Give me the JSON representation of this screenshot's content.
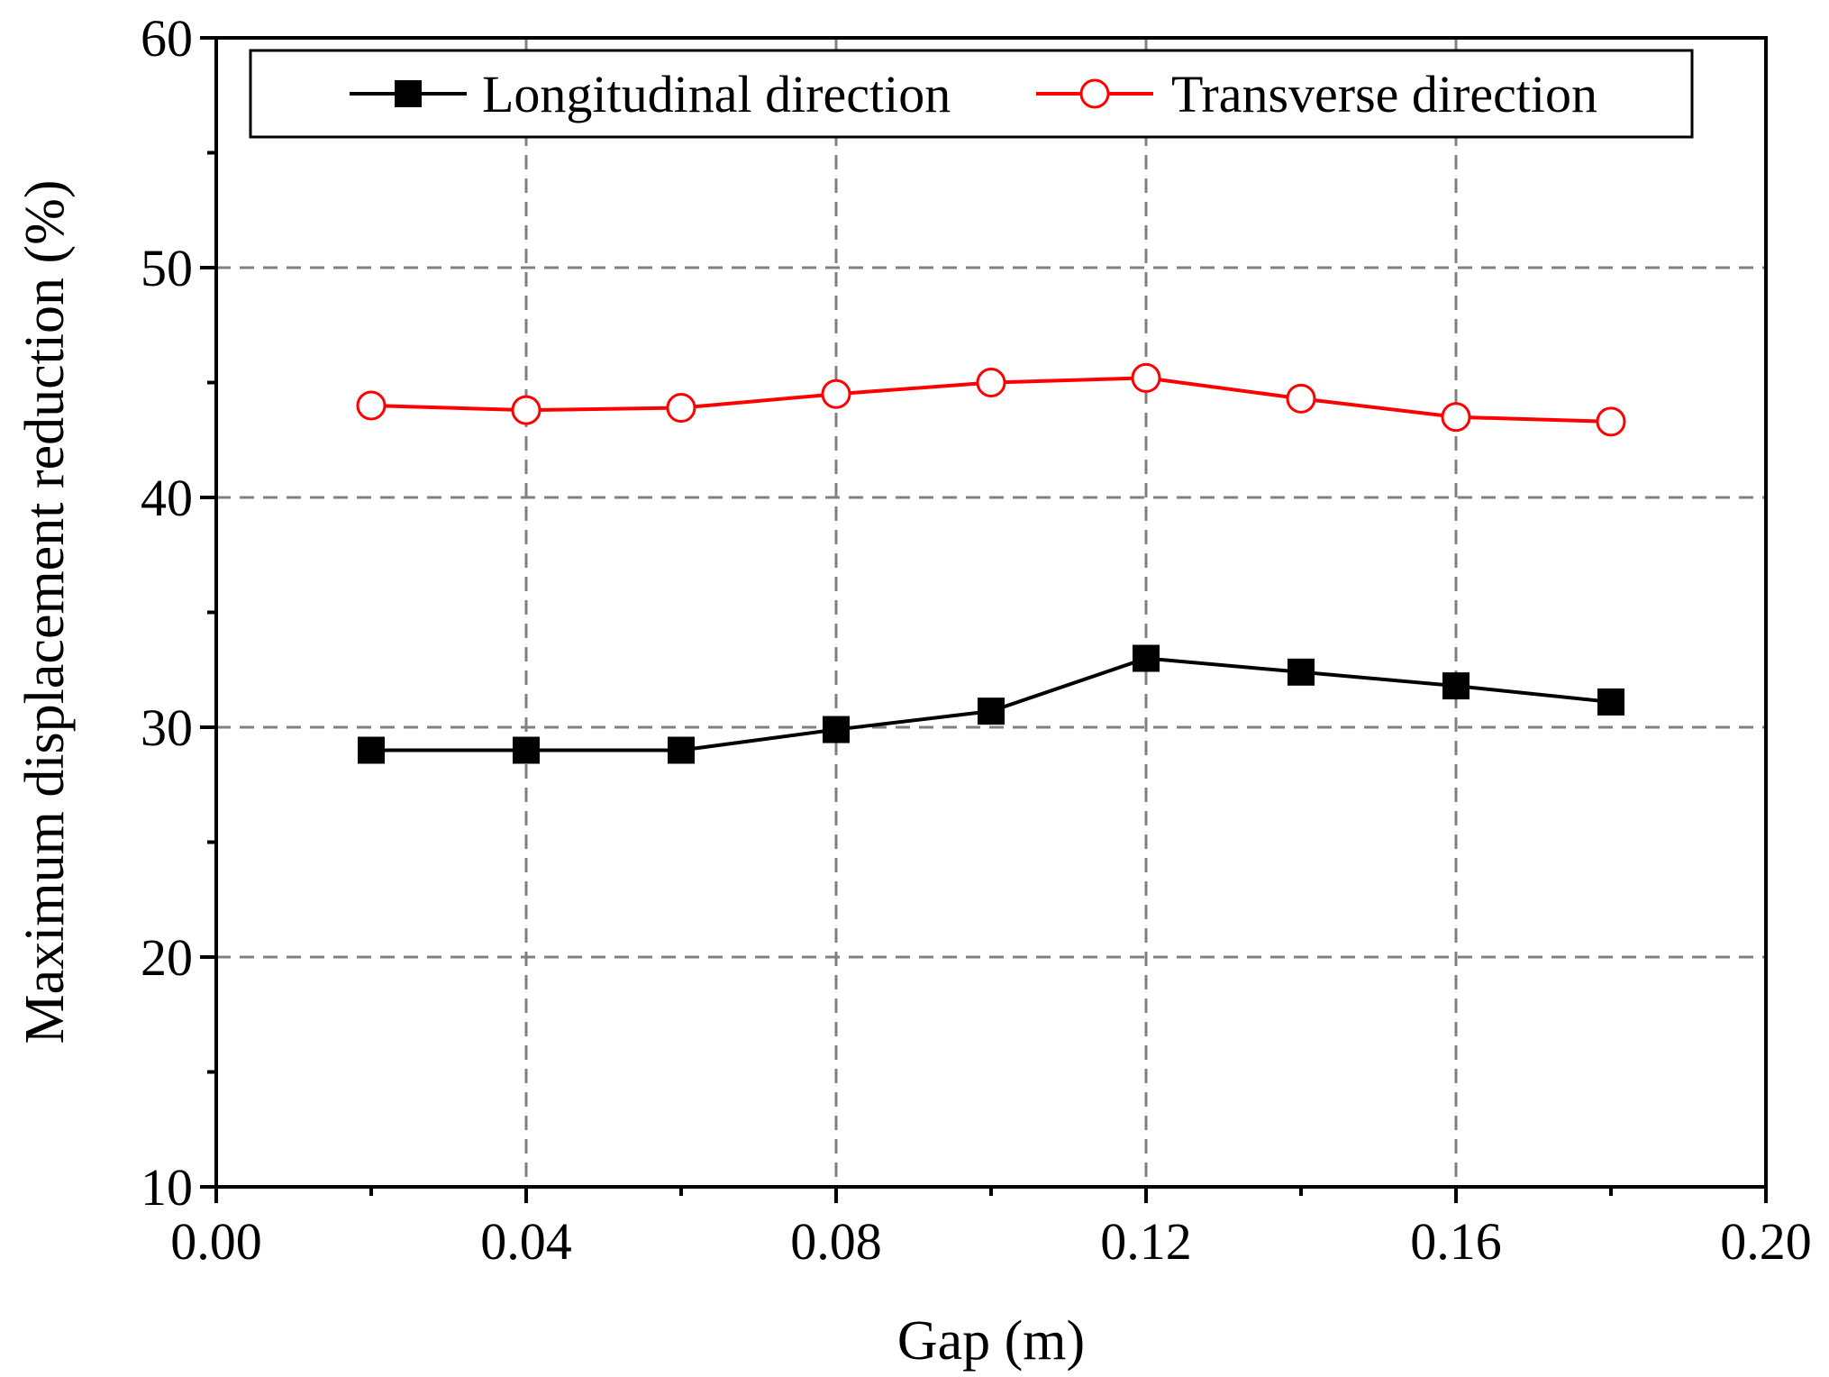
{
  "chart_data": {
    "type": "line",
    "title": "",
    "xlabel": "Gap (m)",
    "ylabel": "Maximum displacement reduction (%)",
    "xlim": [
      0.0,
      0.2
    ],
    "ylim": [
      10,
      60
    ],
    "xticks": [
      0.0,
      0.04,
      0.08,
      0.12,
      0.16,
      0.2
    ],
    "xtick_labels": [
      "0.00",
      "0.04",
      "0.08",
      "0.12",
      "0.16",
      "0.20"
    ],
    "x_minor_step": 0.02,
    "yticks": [
      10,
      20,
      30,
      40,
      50,
      60
    ],
    "ytick_labels": [
      "10",
      "20",
      "30",
      "40",
      "50",
      "60"
    ],
    "y_minor_step": 5,
    "grid": true,
    "legend_position": "top",
    "series": [
      {
        "name": "Longitudinal direction",
        "color": "#000000",
        "marker": "filled-square",
        "x": [
          0.02,
          0.04,
          0.06,
          0.08,
          0.1,
          0.12,
          0.14,
          0.16,
          0.18
        ],
        "values": [
          29.0,
          29.0,
          29.0,
          29.9,
          30.7,
          33.0,
          32.4,
          31.8,
          31.1
        ]
      },
      {
        "name": "Transverse direction",
        "color": "#ff0000",
        "marker": "open-circle",
        "x": [
          0.02,
          0.04,
          0.06,
          0.08,
          0.1,
          0.12,
          0.14,
          0.16,
          0.18
        ],
        "values": [
          44.0,
          43.8,
          43.9,
          44.5,
          45.0,
          45.2,
          44.3,
          43.5,
          43.3
        ]
      }
    ]
  }
}
